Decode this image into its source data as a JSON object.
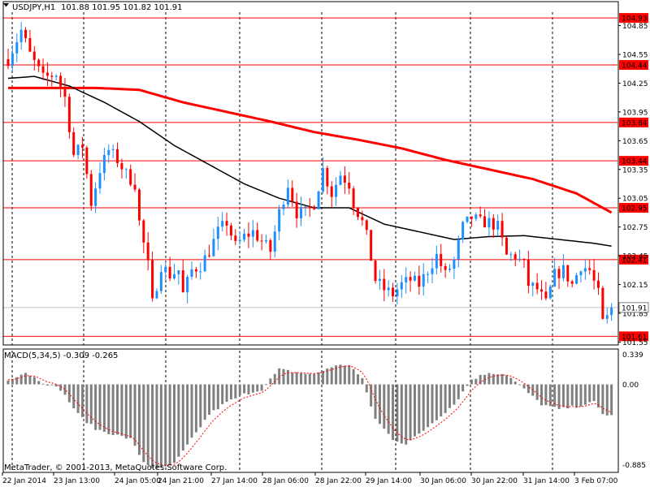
{
  "header": {
    "symbol": "USDJPY,H1",
    "ohlc": "101.88 101.95 101.82 101.91"
  },
  "macd_header": "MACD(5,34,5) -0.309 -0.265",
  "copyright": "MetaTrader, © 2001-2013, MetaQuotes Software Corp.",
  "colors": {
    "bull": "#1e90ff",
    "bear": "#ff0000",
    "ma_slow": "#ff0000",
    "ma_fast": "#000000",
    "level": "#ff0000",
    "macd_hist": "#808080",
    "macd_signal": "#ff0000"
  },
  "chart_data": {
    "type": "candlestick",
    "price_axis": {
      "range": [
        101.52,
        104.99
      ],
      "ticks": [
        "104.85",
        "104.55",
        "104.25",
        "103.95",
        "103.65",
        "103.35",
        "103.05",
        "102.75",
        "102.45",
        "102.15",
        "101.85",
        "101.55"
      ],
      "current_price": "101.91"
    },
    "levels": [
      "104.93",
      "104.44",
      "103.84",
      "103.44",
      "102.95",
      "102.41",
      "101.61"
    ],
    "time_labels": [
      "22 Jan 2014",
      "23 Jan 13:00",
      "24 Jan 05:00",
      "24 Jan 21:00",
      "27 Jan 14:00",
      "28 Jan 06:00",
      "28 Jan 22:00",
      "29 Jan 14:00",
      "30 Jan 06:00",
      "30 Jan 22:00",
      "31 Jan 14:00",
      "3 Feb 07:00"
    ],
    "price_path": [
      [
        0,
        104.5
      ],
      [
        3,
        104.8
      ],
      [
        5,
        104.55
      ],
      [
        8,
        104.3
      ],
      [
        11,
        104.35
      ],
      [
        13,
        104.1
      ],
      [
        15,
        103.5
      ],
      [
        17,
        103.6
      ],
      [
        19,
        103.0
      ],
      [
        21,
        103.35
      ],
      [
        23,
        103.55
      ],
      [
        25,
        103.45
      ],
      [
        27,
        103.3
      ],
      [
        29,
        103.2
      ],
      [
        30,
        102.8
      ],
      [
        32,
        102.35
      ],
      [
        33,
        101.95
      ],
      [
        35,
        102.35
      ],
      [
        37,
        102.25
      ],
      [
        39,
        102.3
      ],
      [
        40,
        102.05
      ],
      [
        42,
        102.3
      ],
      [
        44,
        102.35
      ],
      [
        46,
        102.5
      ],
      [
        48,
        102.7
      ],
      [
        50,
        102.8
      ],
      [
        52,
        102.55
      ],
      [
        54,
        102.65
      ],
      [
        56,
        102.7
      ],
      [
        58,
        102.6
      ],
      [
        60,
        102.5
      ],
      [
        62,
        102.9
      ],
      [
        64,
        103.2
      ],
      [
        66,
        102.9
      ],
      [
        68,
        102.9
      ],
      [
        70,
        103.0
      ],
      [
        72,
        103.35
      ],
      [
        74,
        103.1
      ],
      [
        76,
        103.3
      ],
      [
        78,
        103.2
      ],
      [
        79,
        103.0
      ],
      [
        81,
        102.8
      ],
      [
        82,
        102.65
      ],
      [
        84,
        102.2
      ],
      [
        86,
        102.1
      ],
      [
        88,
        102.05
      ],
      [
        90,
        102.15
      ],
      [
        92,
        102.2
      ],
      [
        94,
        102.15
      ],
      [
        96,
        102.3
      ],
      [
        98,
        102.45
      ],
      [
        100,
        102.25
      ],
      [
        102,
        102.4
      ],
      [
        104,
        102.75
      ],
      [
        106,
        102.85
      ],
      [
        108,
        102.8
      ],
      [
        110,
        102.8
      ],
      [
        112,
        102.75
      ],
      [
        114,
        102.45
      ],
      [
        116,
        102.45
      ],
      [
        118,
        102.35
      ],
      [
        119,
        102.15
      ],
      [
        121,
        102.1
      ],
      [
        123,
        101.95
      ],
      [
        125,
        102.25
      ],
      [
        127,
        102.3
      ],
      [
        129,
        102.15
      ],
      [
        131,
        102.35
      ],
      [
        133,
        102.3
      ],
      [
        135,
        102.05
      ],
      [
        136,
        101.75
      ],
      [
        137,
        101.8
      ],
      [
        138,
        101.93
      ]
    ],
    "ma_fast_path": [
      [
        0,
        104.3
      ],
      [
        6,
        104.32
      ],
      [
        14,
        104.22
      ],
      [
        22,
        104.05
      ],
      [
        30,
        103.85
      ],
      [
        38,
        103.6
      ],
      [
        46,
        103.4
      ],
      [
        54,
        103.2
      ],
      [
        62,
        103.05
      ],
      [
        70,
        102.95
      ],
      [
        78,
        102.95
      ],
      [
        86,
        102.78
      ],
      [
        94,
        102.7
      ],
      [
        102,
        102.62
      ],
      [
        110,
        102.65
      ],
      [
        118,
        102.66
      ],
      [
        126,
        102.62
      ],
      [
        134,
        102.58
      ],
      [
        138,
        102.55
      ]
    ],
    "ma_slow_path": [
      [
        0,
        104.2
      ],
      [
        10,
        104.2
      ],
      [
        20,
        104.2
      ],
      [
        30,
        104.18
      ],
      [
        40,
        104.05
      ],
      [
        50,
        103.95
      ],
      [
        60,
        103.85
      ],
      [
        70,
        103.74
      ],
      [
        80,
        103.66
      ],
      [
        90,
        103.57
      ],
      [
        100,
        103.45
      ],
      [
        110,
        103.35
      ],
      [
        120,
        103.25
      ],
      [
        130,
        103.1
      ],
      [
        138,
        102.9
      ]
    ],
    "macd_axis": {
      "range": [
        -0.885,
        0.339
      ],
      "ticks": [
        "0.339",
        "0.00",
        "-0.885"
      ]
    },
    "macd_path": [
      [
        0,
        0.05
      ],
      [
        4,
        0.12
      ],
      [
        8,
        0.02
      ],
      [
        12,
        -0.05
      ],
      [
        16,
        -0.3
      ],
      [
        20,
        -0.45
      ],
      [
        24,
        -0.5
      ],
      [
        28,
        -0.55
      ],
      [
        31,
        -0.78
      ],
      [
        34,
        -0.86
      ],
      [
        38,
        -0.8
      ],
      [
        42,
        -0.55
      ],
      [
        46,
        -0.3
      ],
      [
        50,
        -0.18
      ],
      [
        54,
        -0.1
      ],
      [
        58,
        -0.05
      ],
      [
        62,
        0.15
      ],
      [
        66,
        0.12
      ],
      [
        70,
        0.1
      ],
      [
        74,
        0.18
      ],
      [
        78,
        0.2
      ],
      [
        81,
        0.05
      ],
      [
        84,
        -0.35
      ],
      [
        88,
        -0.55
      ],
      [
        91,
        -0.6
      ],
      [
        94,
        -0.5
      ],
      [
        98,
        -0.35
      ],
      [
        102,
        -0.2
      ],
      [
        106,
        0.05
      ],
      [
        110,
        0.12
      ],
      [
        114,
        0.1
      ],
      [
        118,
        -0.05
      ],
      [
        122,
        -0.2
      ],
      [
        126,
        -0.25
      ],
      [
        130,
        -0.22
      ],
      [
        134,
        -0.18
      ],
      [
        136,
        -0.3
      ],
      [
        138,
        -0.31
      ]
    ]
  }
}
